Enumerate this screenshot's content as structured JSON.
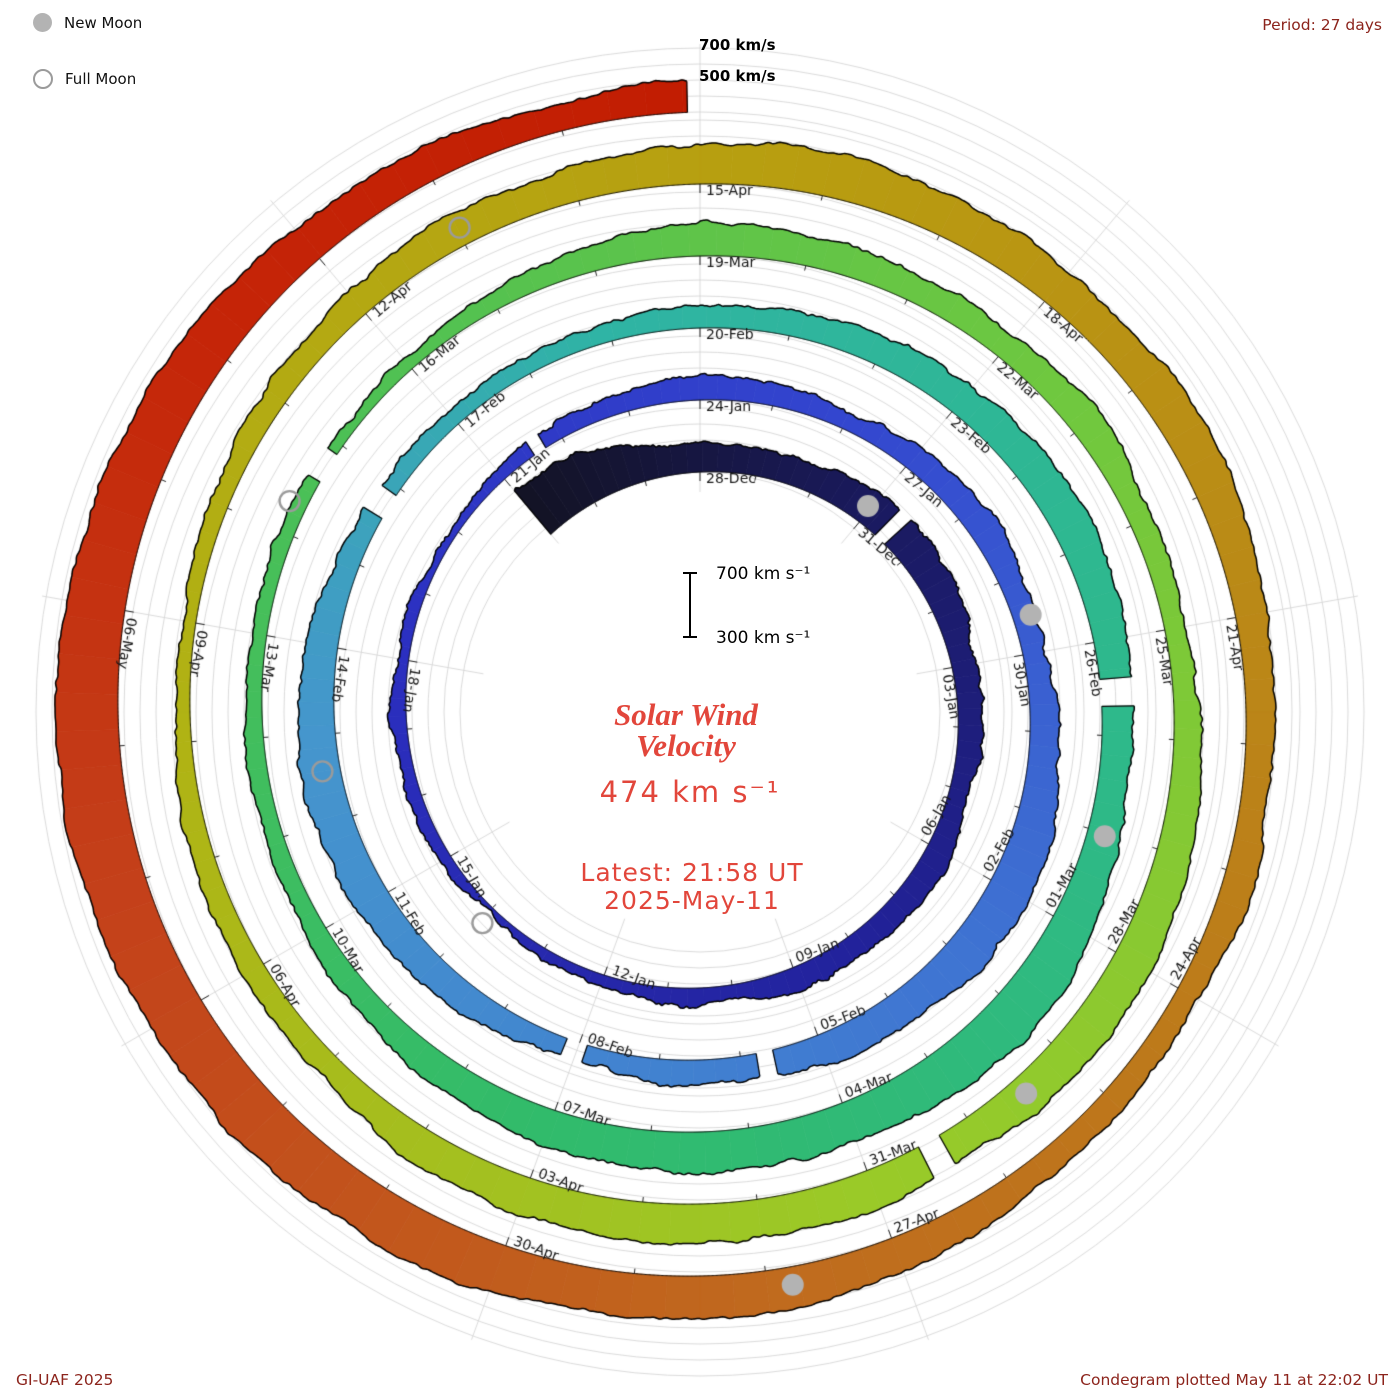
{
  "legend": {
    "new_moon": "New Moon",
    "full_moon": "Full Moon"
  },
  "header": {
    "period": "Period: 27 days"
  },
  "axis": {
    "v700": "700 km/s",
    "v500": "500 km/s"
  },
  "center": {
    "scale_700": "700 km s⁻¹",
    "scale_300": "300 km s⁻¹",
    "title_line1": "Solar Wind",
    "title_line2": "Velocity",
    "current_value": "474 km s⁻¹",
    "latest_line1": "Latest: 21:58 UT",
    "latest_line2": "2025-May-11"
  },
  "footer": {
    "left": "GI-UAF 2025",
    "right": "Condegram plotted May 11 at 22:02 UT"
  },
  "colors": {
    "center_text": "#e2463b",
    "corner_text": "#8c241c",
    "grid": "#d7d7d7",
    "outline": "#000000",
    "label": "#161616",
    "new_moon_fill": "#b3b3b3",
    "full_moon_stroke": "#9b9b9b"
  },
  "chart_data": {
    "type": "spiral",
    "subtype": "condegram of solar wind velocity, one ring = one 27-day solar rotation, time runs clockwise from top",
    "period_days": 27,
    "direction": "clockwise",
    "start_date": "2024-12-25",
    "end_date": "2025-05-11 21:58 UT",
    "baseline_kms": 300,
    "gridline_levels_kms": [
      300,
      400,
      500,
      600,
      700
    ],
    "current_kms": 474,
    "day0_date": "2024-12-25",
    "angle_zero_day": 3,
    "end_day": 137.92,
    "values_daily_kms": [
      640,
      605,
      525,
      470,
      445,
      480,
      520,
      545,
      505,
      465,
      430,
      420,
      445,
      470,
      450,
      430,
      410,
      390,
      380,
      370,
      360,
      385,
      405,
      385,
      370,
      360,
      350,
      360,
      380,
      400,
      425,
      445,
      430,
      450,
      470,
      460,
      440,
      480,
      545,
      560,
      540,
      520,
      500,
      470,
      440,
      420,
      445,
      485,
      530,
      560,
      540,
      500,
      460,
      430,
      415,
      420,
      430,
      440,
      460,
      480,
      520,
      560,
      540,
      505,
      480,
      525,
      585,
      620,
      600,
      580,
      555,
      560,
      540,
      500,
      460,
      440,
      420,
      400,
      390,
      380,
      370,
      385,
      420,
      470,
      520,
      480,
      455,
      470,
      490,
      460,
      440,
      460,
      500,
      540,
      530,
      510,
      540,
      560,
      540,
      520,
      490,
      460,
      440,
      420,
      410,
      400,
      410,
      430,
      460,
      500,
      530,
      560,
      590,
      570,
      550,
      560,
      540,
      520,
      490,
      470,
      450,
      460,
      490,
      530,
      560,
      580,
      600,
      620,
      650,
      670,
      660,
      680,
      690,
      660,
      620,
      570,
      520,
      474
    ],
    "date_labels": [
      [
        "28-Dec",
        3
      ],
      [
        "31-Dec",
        6
      ],
      [
        "03-Jan",
        9
      ],
      [
        "06-Jan",
        12
      ],
      [
        "09-Jan",
        15
      ],
      [
        "12-Jan",
        18
      ],
      [
        "15-Jan",
        21
      ],
      [
        "18-Jan",
        24
      ],
      [
        "21-Jan",
        27
      ],
      [
        "24-Jan",
        30
      ],
      [
        "27-Jan",
        33
      ],
      [
        "30-Jan",
        36
      ],
      [
        "02-Feb",
        39
      ],
      [
        "05-Feb",
        42
      ],
      [
        "08-Feb",
        45
      ],
      [
        "11-Feb",
        48
      ],
      [
        "14-Feb",
        51
      ],
      [
        "17-Feb",
        54
      ],
      [
        "20-Feb",
        57
      ],
      [
        "23-Feb",
        60
      ],
      [
        "26-Feb",
        63
      ],
      [
        "01-Mar",
        66
      ],
      [
        "04-Mar",
        69
      ],
      [
        "07-Mar",
        72
      ],
      [
        "10-Mar",
        75
      ],
      [
        "13-Mar",
        78
      ],
      [
        "16-Mar",
        81
      ],
      [
        "19-Mar",
        84
      ],
      [
        "22-Mar",
        87
      ],
      [
        "25-Mar",
        90
      ],
      [
        "28-Mar",
        93
      ],
      [
        "31-Mar",
        96
      ],
      [
        "03-Apr",
        99
      ],
      [
        "06-Apr",
        102
      ],
      [
        "09-Apr",
        105
      ],
      [
        "12-Apr",
        108
      ],
      [
        "15-Apr",
        111
      ],
      [
        "18-Apr",
        114
      ],
      [
        "21-Apr",
        117
      ],
      [
        "24-Apr",
        120
      ],
      [
        "27-Apr",
        123
      ],
      [
        "30-Apr",
        126
      ],
      [
        "06-May",
        132
      ]
    ],
    "gaps": [
      {
        "day": 6.35,
        "len": 0.22
      },
      {
        "day": 27.55,
        "len": 0.18
      },
      {
        "day": 42.6,
        "len": 0.2
      },
      {
        "day": 44.9,
        "len": 0.25
      },
      {
        "day": 52.6,
        "len": 0.3
      },
      {
        "day": 63.4,
        "len": 0.28
      },
      {
        "day": 79.6,
        "len": 0.3
      },
      {
        "day": 95.3,
        "len": 0.2
      }
    ],
    "moons": {
      "new": [
        [
          "2024-12-30",
          5.94
        ],
        [
          "2025-01-29",
          35.52
        ],
        [
          "2025-02-28",
          65.03
        ],
        [
          "2025-03-29",
          94.46
        ],
        [
          "2025-04-27",
          123.81
        ]
      ],
      "full": [
        [
          "2025-01-13",
          19.94
        ],
        [
          "2025-02-12",
          49.58
        ],
        [
          "2025-03-14",
          79.29
        ],
        [
          "2025-04-13",
          109.02
        ]
      ]
    },
    "colormap": [
      [
        0,
        "#131325"
      ],
      [
        6,
        "#1a1a5e"
      ],
      [
        14,
        "#22229b"
      ],
      [
        24,
        "#2b2fc0"
      ],
      [
        32,
        "#3346cf"
      ],
      [
        40,
        "#3f74d2"
      ],
      [
        50,
        "#4596cd"
      ],
      [
        56,
        "#2fb4a4"
      ],
      [
        64,
        "#2eb98a"
      ],
      [
        72,
        "#31bb6b"
      ],
      [
        80,
        "#4cc055"
      ],
      [
        88,
        "#71c83e"
      ],
      [
        96,
        "#9aca28"
      ],
      [
        104,
        "#b0b314"
      ],
      [
        112,
        "#b89d10"
      ],
      [
        118,
        "#bb8418"
      ],
      [
        124,
        "#c06a1e"
      ],
      [
        130,
        "#c4401a"
      ],
      [
        134,
        "#c52508"
      ],
      [
        138,
        "#c21d02"
      ]
    ]
  }
}
